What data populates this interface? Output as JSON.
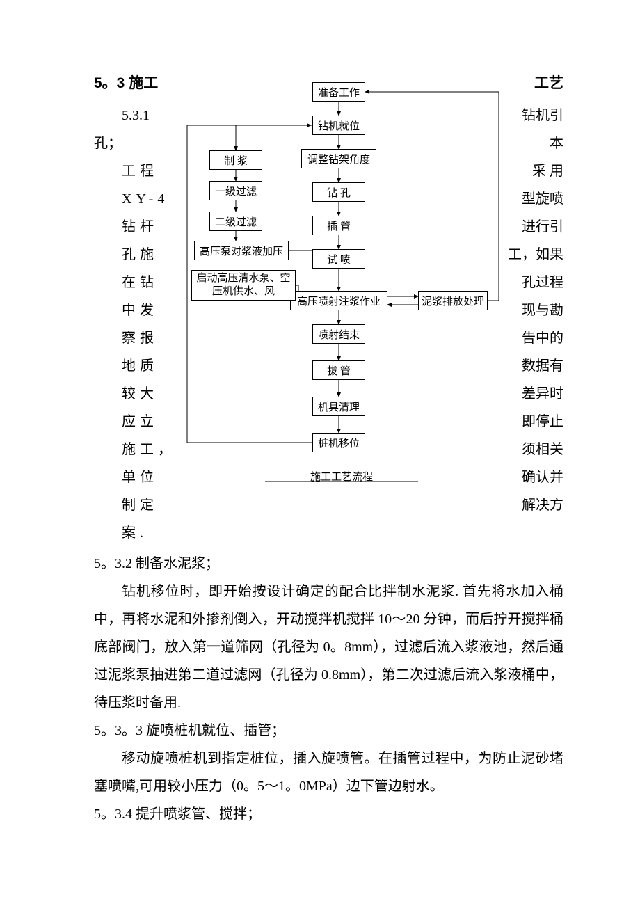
{
  "heading": {
    "num": "5。3",
    "title_left": "施工",
    "title_right": "工艺"
  },
  "section_531": {
    "num": "5.3.1",
    "right": "钻机引",
    "left2": "孔；",
    "right2": "本",
    "rows": [
      {
        "l": "工程",
        "r": "采  用"
      },
      {
        "l": "XY-4",
        "r": "型旋喷"
      },
      {
        "l": "钻杆",
        "r": "进行引"
      },
      {
        "l": "孔施",
        "r": "工，如果"
      },
      {
        "l": "在钻",
        "r": "孔过程"
      },
      {
        "l": "中发",
        "r": "现与勘"
      },
      {
        "l": "察报",
        "r": "告中的"
      },
      {
        "l": "地质",
        "r": "数据有"
      },
      {
        "l": "较大",
        "r": "差异时"
      },
      {
        "l": "应立",
        "r": "即停止"
      },
      {
        "l": "施工，",
        "r": "须相关"
      },
      {
        "l": "单位",
        "r": "确认并"
      },
      {
        "l": "制定",
        "r": "解决方"
      },
      {
        "l": "案.",
        "r": ""
      }
    ]
  },
  "section_532": {
    "title": "5。3.2 制备水泥浆；",
    "body": "钻机移位时，即开始按设计确定的配合比拌制水泥浆. 首先将水加入桶中，再将水泥和外掺剂倒入，开动搅拌机搅拌 10～20 分钟，而后拧开搅拌桶底部阀门，放入第一道筛网（孔径为 0。8mm），过滤后流入浆液池，然后通过泥浆泵抽进第二道过滤网（孔径为 0.8mm），第二次过滤后流入浆液桶中，待压浆时备用."
  },
  "section_533": {
    "title": "5。3。3 旋喷桩机就位、插管；",
    "body": "移动旋喷桩机到指定桩位，插入旋喷管。在插管过程中，为防止泥砂堵塞喷嘴,可用较小压力（0。5～1。0MPa）边下管边射水。"
  },
  "section_534": {
    "title": "5。3.4 提升喷浆管、搅拌；"
  },
  "flowchart": {
    "caption": "施工工艺流程",
    "nodes": {
      "prep": {
        "label": "准备工作"
      },
      "pos": {
        "label": "钻机就位"
      },
      "angle": {
        "label": "调整钻架角度"
      },
      "drill": {
        "label": "钻 孔"
      },
      "insert": {
        "label": "插 管"
      },
      "test": {
        "label": "试 喷"
      },
      "inject": {
        "label": "高压喷射注浆作业"
      },
      "end": {
        "label": "喷射结束"
      },
      "pull": {
        "label": "拔 管"
      },
      "clean": {
        "label": "机具清理"
      },
      "move": {
        "label": "桩机移位"
      },
      "mix": {
        "label": "制 浆"
      },
      "f1": {
        "label": "一级过滤"
      },
      "f2": {
        "label": "二级过滤"
      },
      "press": {
        "label": "高压泵对浆液加压"
      },
      "launch": {
        "label": "启动高压清水泵、空压机供水、风"
      },
      "sludge": {
        "label": "泥浆排放处理"
      }
    },
    "style": {
      "stroke": "#000000",
      "stroke_width": 1,
      "arrow_size": 7
    }
  }
}
